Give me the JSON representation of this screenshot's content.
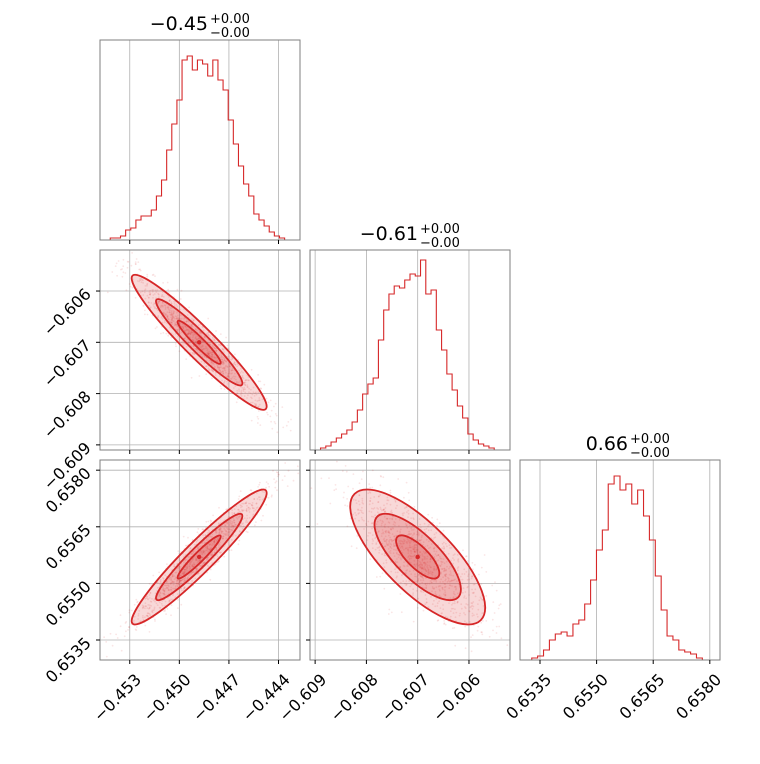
{
  "chart_data": {
    "type": "corner",
    "color": "#d62728",
    "parameters": [
      {
        "title_main": "−0.45",
        "title_sup": "+0.00",
        "title_sub": "−0.00",
        "range": [
          -0.4548,
          -0.4427
        ],
        "ticks": [
          -0.453,
          -0.45,
          -0.447,
          -0.444
        ],
        "tick_labels": [
          "−0.453",
          "−0.450",
          "−0.447",
          "−0.444"
        ],
        "center": -0.4488,
        "hist": [
          0.0,
          0.0,
          0.01,
          0.01,
          0.02,
          0.05,
          0.06,
          0.1,
          0.12,
          0.12,
          0.15,
          0.22,
          0.3,
          0.45,
          0.58,
          0.7,
          0.9,
          0.92,
          0.85,
          0.9,
          0.88,
          0.82,
          0.9,
          0.8,
          0.75,
          0.6,
          0.48,
          0.37,
          0.28,
          0.22,
          0.13,
          0.1,
          0.07,
          0.04,
          0.02,
          0.01,
          0.0,
          0.0,
          0.0
        ]
      },
      {
        "title_main": "−0.61",
        "title_sup": "+0.00",
        "title_sub": "−0.00",
        "range": [
          -0.6091,
          -0.6052
        ],
        "ticks": [
          -0.609,
          -0.608,
          -0.607,
          -0.606
        ],
        "tick_labels": [
          "−0.609",
          "−0.608",
          "−0.607",
          "−0.606"
        ],
        "center": -0.607,
        "hist": [
          0.0,
          0.0,
          0.01,
          0.02,
          0.04,
          0.06,
          0.08,
          0.1,
          0.14,
          0.2,
          0.28,
          0.33,
          0.36,
          0.55,
          0.7,
          0.78,
          0.82,
          0.81,
          0.85,
          0.88,
          0.87,
          0.95,
          0.78,
          0.8,
          0.6,
          0.5,
          0.38,
          0.3,
          0.22,
          0.16,
          0.08,
          0.05,
          0.03,
          0.02,
          0.01,
          0.0,
          0.0,
          0.0
        ]
      },
      {
        "title_main": "0.66",
        "title_sup": "+0.00",
        "title_sub": "−0.00",
        "range": [
          0.65297,
          0.65827
        ],
        "ticks": [
          0.6535,
          0.655,
          0.6565,
          0.658
        ],
        "tick_labels": [
          "0.6535",
          "0.6550",
          "0.6565",
          "0.6580"
        ],
        "center": 0.6557,
        "hist": [
          0.0,
          0.0,
          0.01,
          0.02,
          0.05,
          0.1,
          0.13,
          0.14,
          0.12,
          0.18,
          0.2,
          0.28,
          0.4,
          0.55,
          0.65,
          0.88,
          0.92,
          0.85,
          0.88,
          0.78,
          0.85,
          0.72,
          0.6,
          0.42,
          0.25,
          0.12,
          0.1,
          0.05,
          0.04,
          0.03,
          0.01,
          0.0,
          0.0,
          0.0
        ]
      }
    ],
    "y_tick_labels": {
      "row1": [
        "−0.609",
        "−0.608",
        "−0.607",
        "−0.606"
      ],
      "row2": [
        "0.6535",
        "0.6550",
        "0.6565",
        "0.6580"
      ]
    },
    "pairs": [
      {
        "x": 0,
        "y": 1,
        "corr": -0.95
      },
      {
        "x": 0,
        "y": 2,
        "corr": 0.95
      },
      {
        "x": 1,
        "y": 2,
        "corr": -0.75
      }
    ],
    "grid": true
  }
}
